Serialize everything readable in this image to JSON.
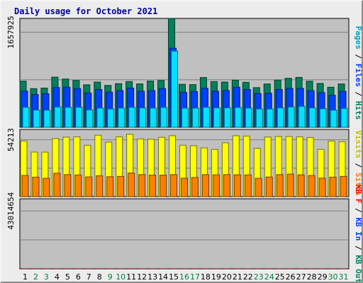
{
  "chart_data": {
    "type": "bar",
    "title": "Daily usage for October 2021",
    "categories": [
      "1",
      "2",
      "3",
      "4",
      "5",
      "6",
      "7",
      "8",
      "9",
      "10",
      "11",
      "12",
      "13",
      "14",
      "15",
      "16",
      "17",
      "18",
      "19",
      "20",
      "21",
      "22",
      "23",
      "24",
      "25",
      "26",
      "27",
      "28",
      "29",
      "30",
      "31"
    ],
    "weekend_days": [
      "2",
      "3",
      "9",
      "10",
      "16",
      "17",
      "23",
      "24",
      "30",
      "31"
    ],
    "colors": {
      "hits": "#00805c",
      "files": "#0040ff",
      "pages": "#00e0ff",
      "visits": "#ffff00",
      "sites": "#ff8000",
      "kbytes": "#ff0000",
      "plot_bg": "#c0c0c0",
      "title": "#0000a0",
      "weekday_label": "#000000",
      "weekend_label": "#008040"
    },
    "panels": [
      {
        "id": "hits-files-pages",
        "axis_max_label": "1657925",
        "ylim": [
          0,
          1900000
        ],
        "legend": [
          {
            "text": "Pages",
            "color": "#00a0c0"
          },
          {
            "text": " / ",
            "color": "#000000"
          },
          {
            "text": "Files",
            "color": "#0040ff"
          },
          {
            "text": " / ",
            "color": "#000000"
          },
          {
            "text": "Hits",
            "color": "#008060"
          }
        ],
        "series": [
          {
            "name": "Hits",
            "color": "#00805c",
            "values": [
              805000,
              675000,
              685000,
              875000,
              842000,
              818000,
              742000,
              790000,
              732000,
              762000,
              799000,
              758000,
              807000,
              818000,
              1900000,
              750000,
              745000,
              868000,
              798000,
              790000,
              822000,
              785000,
              693000,
              756000,
              823000,
              855000,
              871000,
              805000,
              766000,
              700000,
              756000
            ]
          },
          {
            "name": "Files",
            "color": "#0040ff",
            "values": [
              633000,
              573000,
              587000,
              695000,
              700000,
              677000,
              600000,
              660000,
              614000,
              640000,
              685000,
              630000,
              640000,
              676000,
              1380000,
              610000,
              625000,
              680000,
              630000,
              643000,
              700000,
              660000,
              590000,
              595000,
              660000,
              680000,
              680000,
              640000,
              607000,
              560000,
              627000
            ]
          },
          {
            "name": "Pages",
            "color": "#00e0ff",
            "values": [
              350000,
              302000,
              300000,
              355000,
              350000,
              350000,
              305000,
              336000,
              320000,
              337000,
              350000,
              340000,
              335000,
              347000,
              1330000,
              335000,
              335000,
              350000,
              340000,
              340000,
              347000,
              336000,
              320000,
              320000,
              340000,
              355000,
              367000,
              340000,
              324000,
              300000,
              330000
            ]
          }
        ]
      },
      {
        "id": "visits-sites",
        "axis_max_label": "54213",
        "ylim": [
          0,
          64000
        ],
        "legend": [
          {
            "text": "Visits",
            "color": "#c0c000"
          },
          {
            "text": " / ",
            "color": "#000000"
          },
          {
            "text": "Sites",
            "color": "#ff8000"
          }
        ],
        "series": [
          {
            "name": "Visits",
            "color": "#ffff00",
            "values": [
              53000,
              42500,
              42400,
              55300,
              56700,
              56900,
              49000,
              58500,
              52000,
              57000,
              59500,
              55000,
              54800,
              56500,
              58000,
              49000,
              48500,
              46500,
              45000,
              51300,
              58000,
              57700,
              46100,
              56800,
              57300,
              57300,
              57000,
              56300,
              45000,
              53000,
              52300
            ]
          },
          {
            "name": "Sites",
            "color": "#ff8000",
            "values": [
              20200,
              18600,
              17500,
              22300,
              21000,
              20700,
              18800,
              19900,
              19000,
              19300,
              22500,
              21000,
              20500,
              20500,
              21000,
              17600,
              18300,
              21000,
              20800,
              21000,
              20800,
              20700,
              17500,
              18700,
              21000,
              21500,
              20800,
              20200,
              17700,
              18600,
              19300
            ]
          }
        ]
      },
      {
        "id": "kbytes",
        "axis_max_label": "43014654",
        "ylim": [
          0,
          52000000
        ],
        "legend": [
          {
            "text": "KB F",
            "color": "#ff0000"
          },
          {
            "text": " / ",
            "color": "#000000"
          },
          {
            "text": "KB In",
            "color": "#0040ff"
          },
          {
            "text": " / ",
            "color": "#000000"
          },
          {
            "text": "KB Out",
            "color": "#008060"
          }
        ],
        "series": [
          {
            "name": "KB F",
            "color": "#ff0000",
            "values": [
              42500,
              43800,
              45700,
              48600,
              49700,
              45300,
              41800,
              42700,
              41700,
              45600,
              46100,
              42500,
              41000,
              41000,
              50200,
              44100,
              42100,
              47900,
              47300,
              44100,
              42900,
              41700,
              38800,
              43600,
              47500,
              47300,
              44300,
              42900,
              40500,
              43000,
              46000
            ]
          }
        ]
      }
    ]
  }
}
